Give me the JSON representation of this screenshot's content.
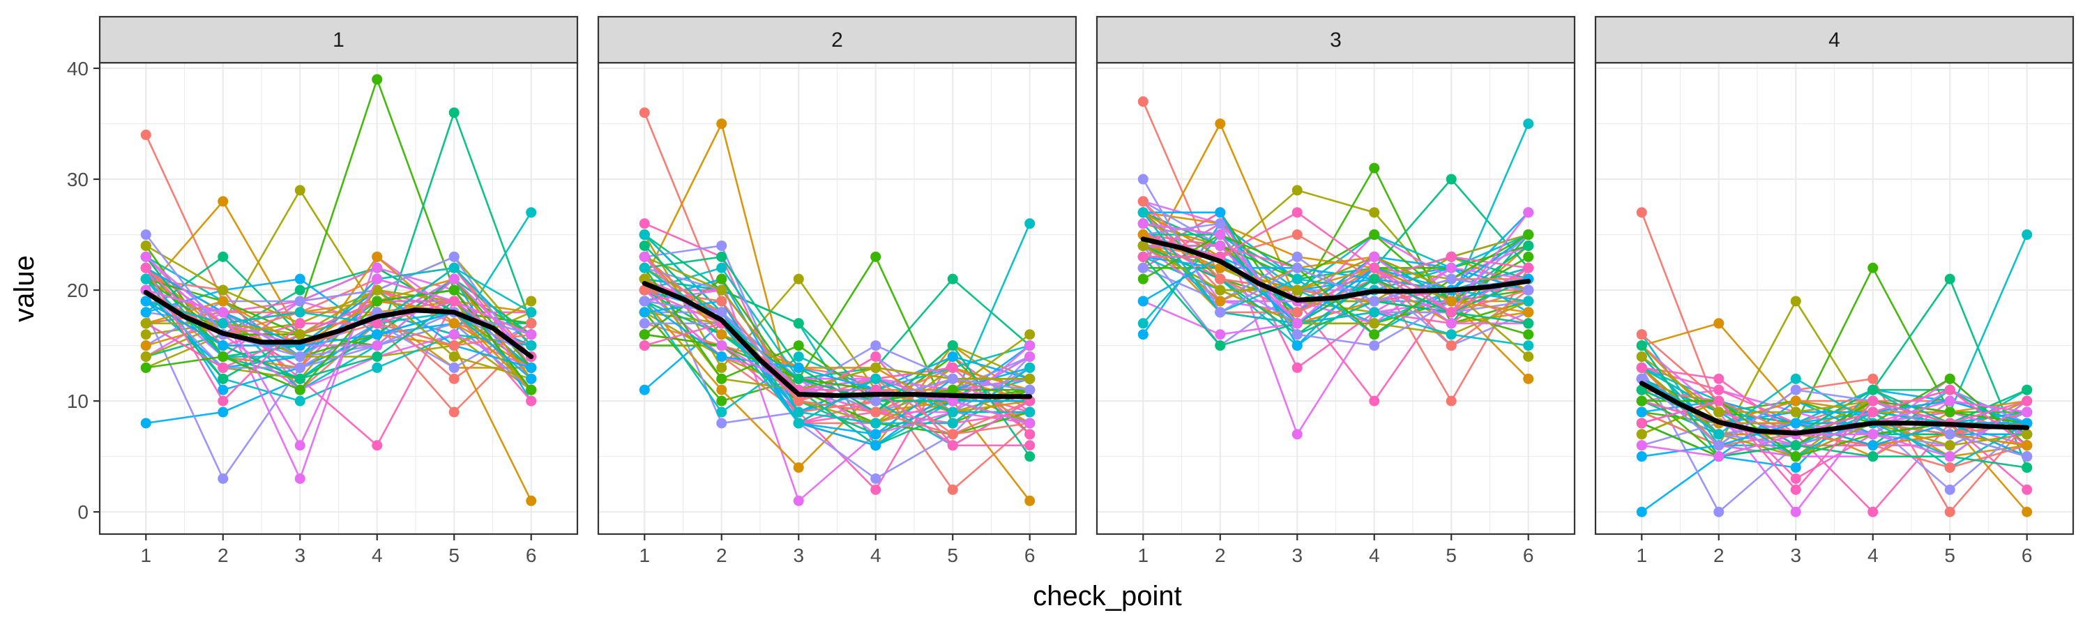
{
  "chart_data": {
    "type": "line",
    "facet_variable": "facet",
    "facets": [
      "1",
      "2",
      "3",
      "4"
    ],
    "xlabel": "check_point",
    "ylabel": "value",
    "x_ticks": [
      1,
      2,
      3,
      4,
      5,
      6
    ],
    "y_ticks": [
      0,
      10,
      20,
      30,
      40
    ],
    "xlim": [
      0.4,
      6.6
    ],
    "ylim": [
      -2,
      40.5
    ],
    "grid": true,
    "legend": "none",
    "smooth_color": "#000000",
    "panel_border_color": "#333333",
    "strip_fill": "#d9d9d9",
    "grid_color": "#ebebeb",
    "series_colors": [
      "#F8766D",
      "#D89000",
      "#A3A500",
      "#39B600",
      "#00BF7D",
      "#00BFC4",
      "#00B0F6",
      "#9590FF",
      "#E76BF3",
      "#FF62BC"
    ],
    "smooth_lines": [
      {
        "facet": "1",
        "x": [
          1,
          1.5,
          2,
          2.5,
          3,
          3.5,
          4,
          4.5,
          5,
          5.5,
          6
        ],
        "y": [
          19.8,
          17.6,
          16.1,
          15.3,
          15.3,
          16.3,
          17.6,
          18.2,
          18.0,
          16.6,
          14.0
        ]
      },
      {
        "facet": "2",
        "x": [
          1,
          1.5,
          2,
          2.5,
          3,
          3.5,
          4,
          4.5,
          5,
          5.5,
          6
        ],
        "y": [
          20.6,
          19.2,
          17.3,
          13.7,
          10.6,
          10.5,
          10.6,
          10.6,
          10.5,
          10.4,
          10.4
        ]
      },
      {
        "facet": "3",
        "x": [
          1,
          1.5,
          2,
          2.5,
          3,
          3.5,
          4,
          4.5,
          5,
          5.5,
          6
        ],
        "y": [
          24.6,
          23.8,
          22.6,
          20.6,
          19.1,
          19.3,
          19.9,
          19.9,
          20.0,
          20.3,
          20.8
        ]
      },
      {
        "facet": "4",
        "x": [
          1,
          1.5,
          2,
          2.5,
          3,
          3.5,
          4,
          4.5,
          5,
          5.5,
          6
        ],
        "y": [
          11.6,
          9.7,
          8.1,
          7.3,
          7.1,
          7.5,
          8.0,
          8.0,
          7.9,
          7.7,
          7.6
        ]
      }
    ],
    "panel_profiles": [
      {
        "facet": "1",
        "center": [
          19.5,
          16.2,
          15.3,
          17.6,
          18.2,
          14.0
        ],
        "spread": [
          5.5,
          5.0,
          5.0,
          5.0,
          5.0,
          4.5
        ],
        "min": [
          8,
          3,
          3,
          6,
          9,
          1
        ],
        "max": [
          34,
          28,
          29,
          39,
          36,
          27
        ],
        "n_series": 60
      },
      {
        "facet": "2",
        "center": [
          20.5,
          17.3,
          10.6,
          10.6,
          10.5,
          10.4
        ],
        "spread": [
          5.0,
          5.5,
          4.0,
          4.0,
          4.0,
          4.0
        ],
        "min": [
          11,
          8,
          1,
          2,
          2,
          1
        ],
        "max": [
          36,
          35,
          21,
          23,
          21,
          26
        ],
        "n_series": 60
      },
      {
        "facet": "3",
        "center": [
          24.5,
          22.6,
          19.1,
          19.9,
          20.0,
          20.8
        ],
        "spread": [
          4.5,
          4.5,
          4.5,
          4.0,
          4.0,
          5.0
        ],
        "min": [
          16,
          15,
          7,
          10,
          10,
          12
        ],
        "max": [
          37,
          35,
          29,
          31,
          30,
          35
        ],
        "n_series": 60
      },
      {
        "facet": "4",
        "center": [
          11.6,
          8.1,
          7.1,
          8.0,
          7.9,
          7.6
        ],
        "spread": [
          5.0,
          3.5,
          3.5,
          3.5,
          3.5,
          3.5
        ],
        "min": [
          0,
          0,
          0,
          0,
          0,
          0
        ],
        "max": [
          27,
          17,
          19,
          22,
          21,
          25
        ],
        "n_series": 60
      }
    ]
  }
}
